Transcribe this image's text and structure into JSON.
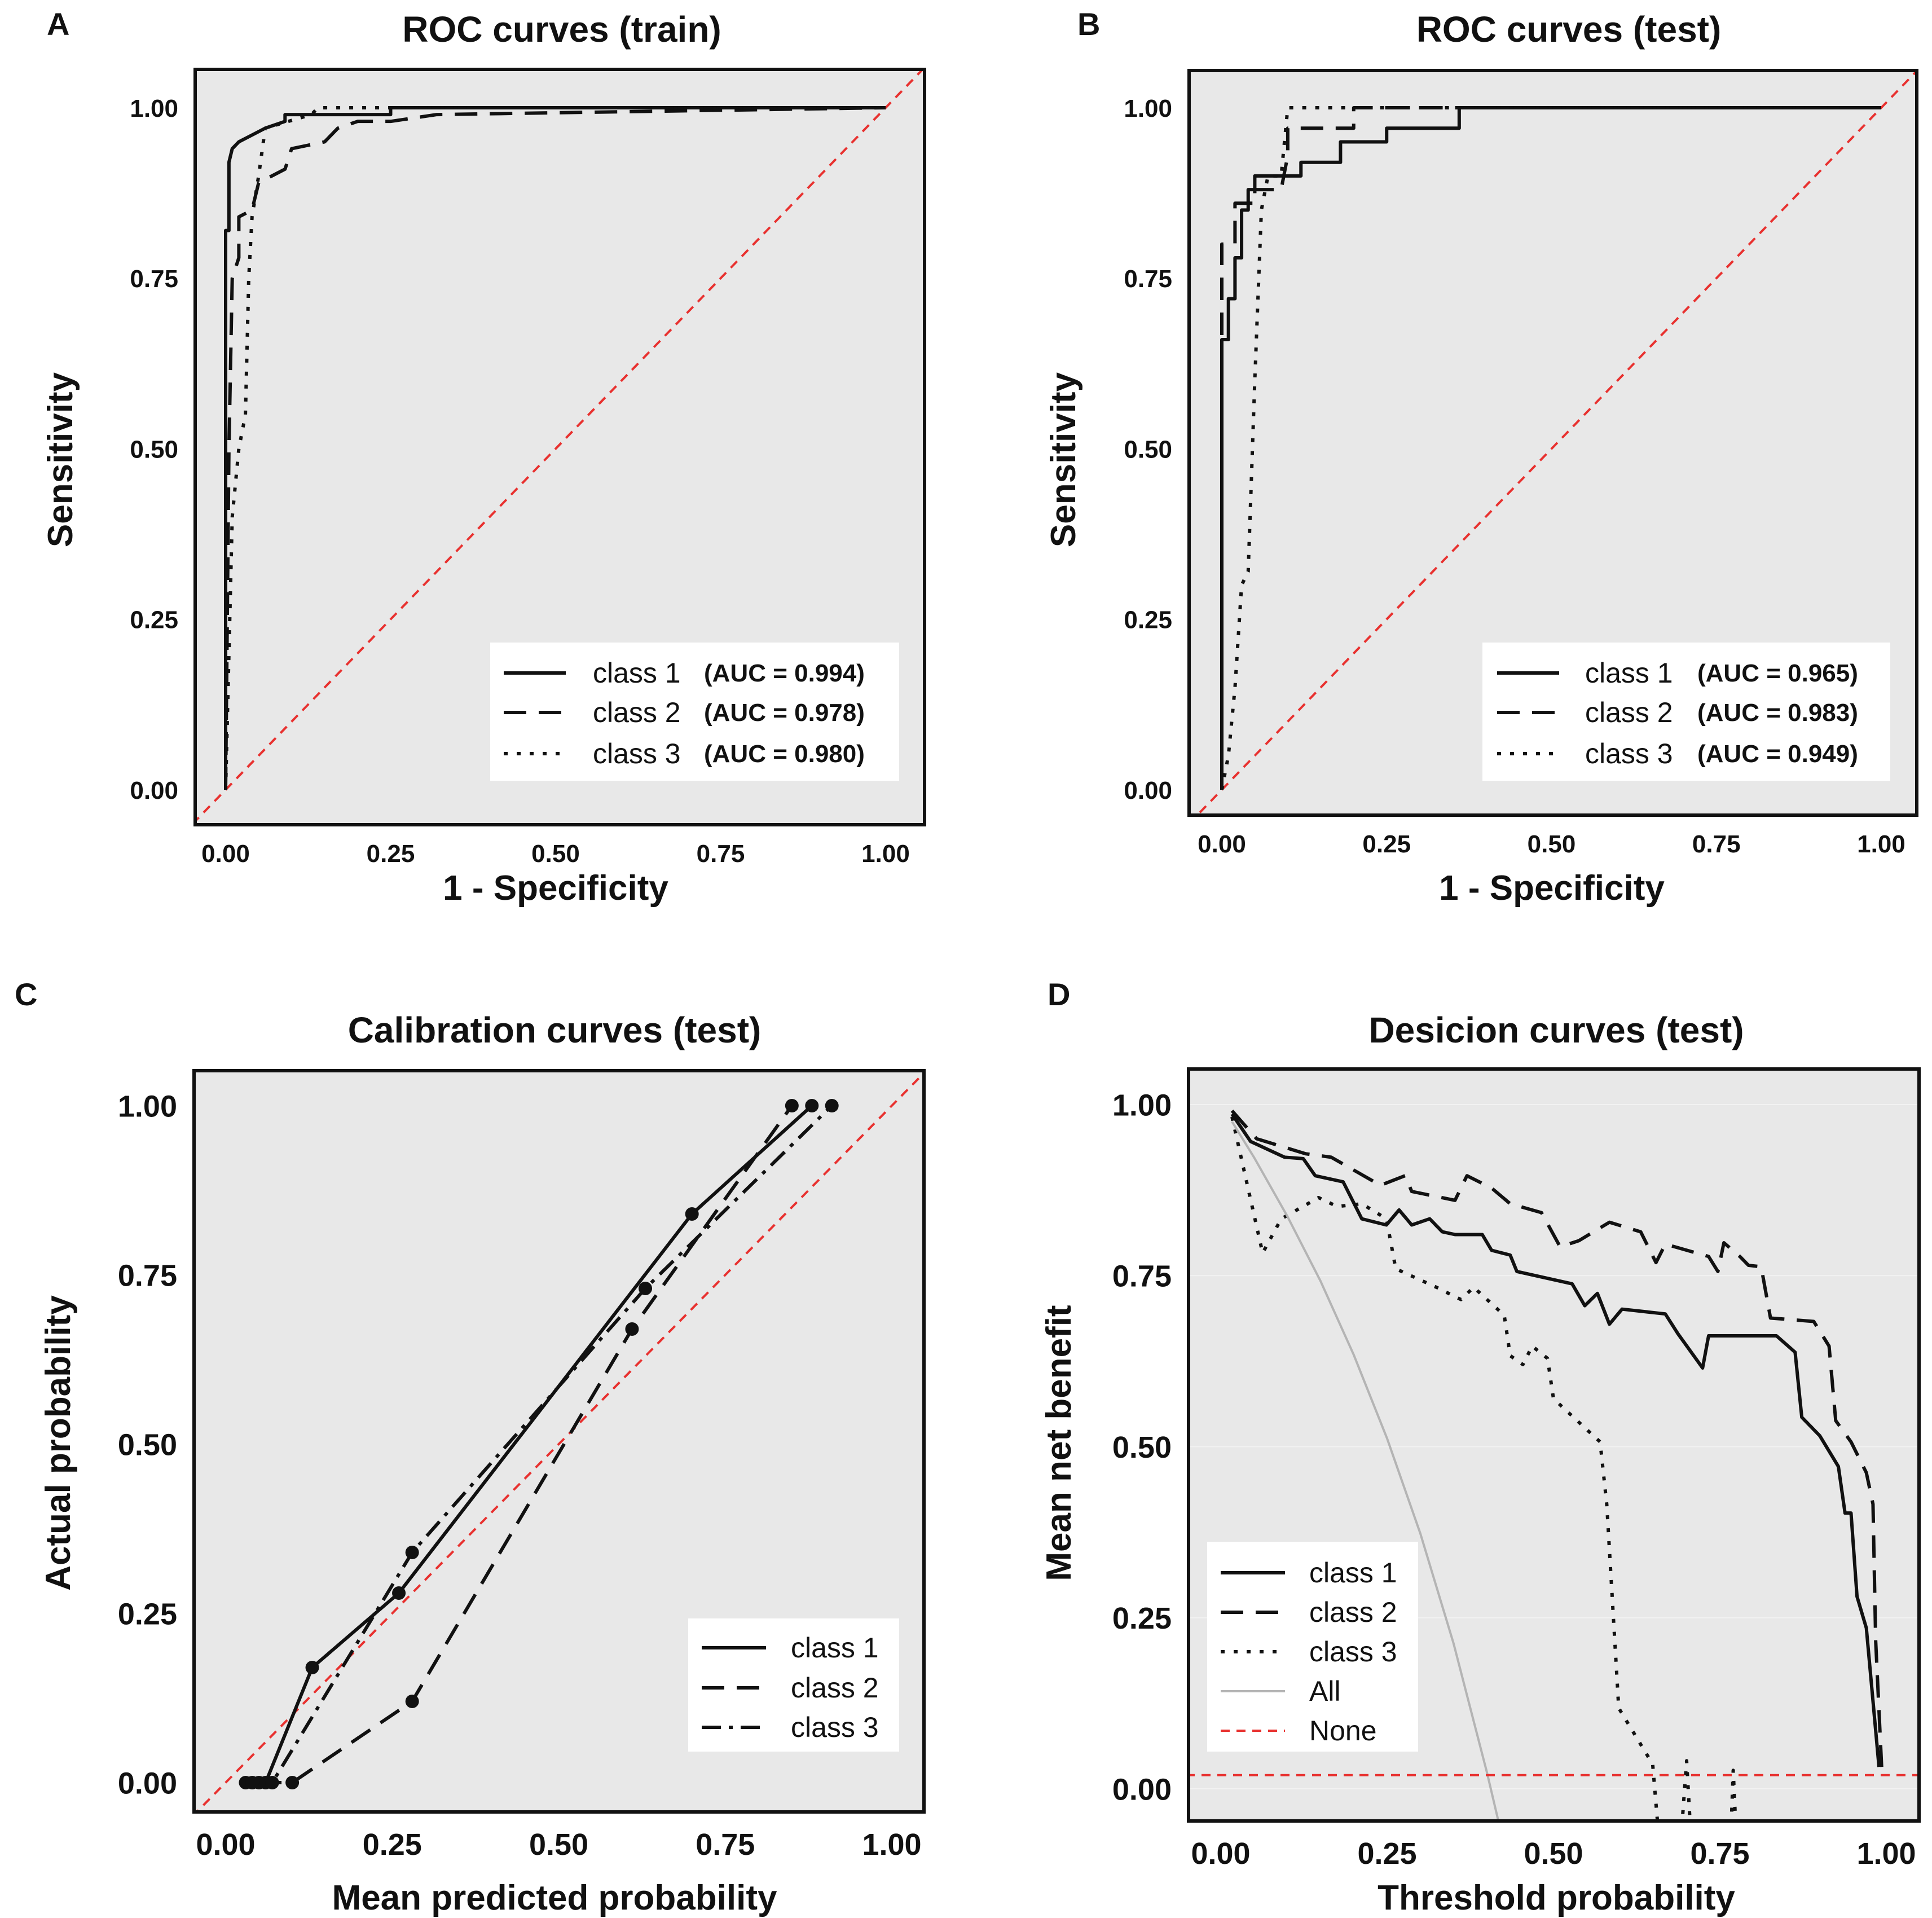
{
  "chart_data": [
    {
      "panel": "A",
      "type": "line",
      "title": "ROC curves (train)",
      "xlabel": "1 - Specificity",
      "ylabel": "Sensitivity",
      "xlim": [
        0,
        1
      ],
      "ylim": [
        0,
        1
      ],
      "xticks": [
        0,
        0.25,
        0.5,
        0.75,
        1
      ],
      "xtick_labels": [
        "0.00",
        "0.25",
        "0.50",
        "0.75",
        "1.00"
      ],
      "yticks": [
        0,
        0.25,
        0.5,
        0.75,
        1
      ],
      "ytick_labels": [
        "0.00",
        "0.25",
        "0.50",
        "0.75",
        "1.00"
      ],
      "legend_position": "bottom-right",
      "reference": {
        "style": "dashed",
        "color": "#e8312f",
        "points": [
          [
            -0.1,
            -0.1
          ],
          [
            1.1,
            1.1
          ]
        ]
      },
      "series": [
        {
          "name": "class 1",
          "auc": "(AUC = 0.994)",
          "style": "solid",
          "points": [
            [
              0,
              0
            ],
            [
              0,
              0.82
            ],
            [
              0.005,
              0.82
            ],
            [
              0.005,
              0.92
            ],
            [
              0.01,
              0.94
            ],
            [
              0.02,
              0.95
            ],
            [
              0.04,
              0.96
            ],
            [
              0.06,
              0.97
            ],
            [
              0.09,
              0.98
            ],
            [
              0.09,
              0.99
            ],
            [
              0.25,
              0.99
            ],
            [
              0.25,
              1
            ],
            [
              1,
              1
            ]
          ]
        },
        {
          "name": "class 2",
          "auc": "(AUC = 0.978)",
          "style": "dashed",
          "points": [
            [
              0,
              0
            ],
            [
              0.005,
              0.5
            ],
            [
              0.01,
              0.75
            ],
            [
              0.02,
              0.78
            ],
            [
              0.02,
              0.84
            ],
            [
              0.04,
              0.85
            ],
            [
              0.05,
              0.89
            ],
            [
              0.07,
              0.9
            ],
            [
              0.09,
              0.91
            ],
            [
              0.1,
              0.94
            ],
            [
              0.15,
              0.95
            ],
            [
              0.17,
              0.97
            ],
            [
              0.2,
              0.98
            ],
            [
              0.25,
              0.98
            ],
            [
              0.32,
              0.99
            ],
            [
              1,
              1
            ]
          ]
        },
        {
          "name": "class 3",
          "auc": "(AUC = 0.980)",
          "style": "dotted",
          "points": [
            [
              0,
              0
            ],
            [
              0.01,
              0.4
            ],
            [
              0.02,
              0.5
            ],
            [
              0.03,
              0.55
            ],
            [
              0.035,
              0.75
            ],
            [
              0.04,
              0.84
            ],
            [
              0.05,
              0.9
            ],
            [
              0.06,
              0.97
            ],
            [
              0.13,
              0.99
            ],
            [
              0.14,
              1
            ],
            [
              1,
              1
            ]
          ]
        }
      ]
    },
    {
      "panel": "B",
      "type": "line",
      "title": "ROC curves (test)",
      "xlabel": "1 - Specificity",
      "ylabel": "Sensitivity",
      "xlim": [
        0,
        1
      ],
      "ylim": [
        0,
        1
      ],
      "xticks": [
        0,
        0.25,
        0.5,
        0.75,
        1
      ],
      "xtick_labels": [
        "0.00",
        "0.25",
        "0.50",
        "0.75",
        "1.00"
      ],
      "yticks": [
        0,
        0.25,
        0.5,
        0.75,
        1
      ],
      "ytick_labels": [
        "0.00",
        "0.25",
        "0.50",
        "0.75",
        "1.00"
      ],
      "legend_position": "bottom-right",
      "reference": {
        "style": "dashed",
        "color": "#e8312f",
        "points": [
          [
            -0.1,
            -0.1
          ],
          [
            1.1,
            1.1
          ]
        ]
      },
      "series": [
        {
          "name": "class 1",
          "auc": "(AUC = 0.965)",
          "style": "solid",
          "points": [
            [
              0,
              0
            ],
            [
              0,
              0.66
            ],
            [
              0.01,
              0.66
            ],
            [
              0.01,
              0.72
            ],
            [
              0.02,
              0.72
            ],
            [
              0.02,
              0.78
            ],
            [
              0.03,
              0.78
            ],
            [
              0.03,
              0.85
            ],
            [
              0.04,
              0.85
            ],
            [
              0.04,
              0.88
            ],
            [
              0.05,
              0.88
            ],
            [
              0.05,
              0.9
            ],
            [
              0.12,
              0.9
            ],
            [
              0.12,
              0.92
            ],
            [
              0.18,
              0.92
            ],
            [
              0.18,
              0.95
            ],
            [
              0.25,
              0.95
            ],
            [
              0.25,
              0.97
            ],
            [
              0.36,
              0.97
            ],
            [
              0.36,
              1
            ],
            [
              1,
              1
            ]
          ]
        },
        {
          "name": "class 2",
          "auc": "(AUC = 0.983)",
          "style": "dashed",
          "points": [
            [
              0,
              0
            ],
            [
              0,
              0.8
            ],
            [
              0.02,
              0.8
            ],
            [
              0.02,
              0.86
            ],
            [
              0.05,
              0.86
            ],
            [
              0.05,
              0.88
            ],
            [
              0.09,
              0.88
            ],
            [
              0.1,
              0.93
            ],
            [
              0.1,
              0.97
            ],
            [
              0.2,
              0.97
            ],
            [
              0.2,
              1
            ],
            [
              1,
              1
            ]
          ]
        },
        {
          "name": "class 3",
          "auc": "(AUC = 0.949)",
          "style": "dotted",
          "points": [
            [
              0,
              0
            ],
            [
              0.01,
              0.05
            ],
            [
              0.02,
              0.15
            ],
            [
              0.03,
              0.3
            ],
            [
              0.04,
              0.32
            ],
            [
              0.05,
              0.6
            ],
            [
              0.06,
              0.85
            ],
            [
              0.07,
              0.9
            ],
            [
              0.09,
              0.9
            ],
            [
              0.1,
              1
            ],
            [
              1,
              1
            ]
          ]
        }
      ]
    },
    {
      "panel": "C",
      "type": "line",
      "title": "Calibration curves (test)",
      "xlabel": "Mean predicted probability",
      "ylabel": "Actual probability",
      "xlim": [
        0,
        1
      ],
      "ylim": [
        0,
        1
      ],
      "xticks": [
        0,
        0.25,
        0.5,
        0.75,
        1
      ],
      "xtick_labels": [
        "0.00",
        "0.25",
        "0.50",
        "0.75",
        "1.00"
      ],
      "yticks": [
        0,
        0.25,
        0.5,
        0.75,
        1
      ],
      "ytick_labels": [
        "0.00",
        "0.25",
        "0.50",
        "0.75",
        "1.00"
      ],
      "legend_position": "bottom-right",
      "reference": {
        "style": "dashed",
        "color": "#e8312f",
        "points": [
          [
            -0.1,
            -0.1
          ],
          [
            1.1,
            1.1
          ]
        ]
      },
      "series": [
        {
          "name": "class 1",
          "style": "solid",
          "markers": true,
          "points": [
            [
              0.03,
              0
            ],
            [
              0.06,
              0
            ],
            [
              0.13,
              0.17
            ],
            [
              0.26,
              0.28
            ],
            [
              0.7,
              0.84
            ],
            [
              0.88,
              1.0
            ]
          ]
        },
        {
          "name": "class 2",
          "style": "dashed",
          "markers": true,
          "points": [
            [
              0.05,
              0
            ],
            [
              0.1,
              0
            ],
            [
              0.28,
              0.12
            ],
            [
              0.61,
              0.67
            ],
            [
              0.85,
              1.0
            ]
          ]
        },
        {
          "name": "class 3",
          "style": "dashdot",
          "markers": true,
          "points": [
            [
              0.04,
              0
            ],
            [
              0.07,
              0
            ],
            [
              0.28,
              0.34
            ],
            [
              0.63,
              0.73
            ],
            [
              0.91,
              1.0
            ]
          ]
        }
      ]
    },
    {
      "panel": "D",
      "type": "line",
      "title": "Desicion curves (test)",
      "xlabel": "Threshold probability",
      "ylabel": "Mean net benefit",
      "xlim": [
        0,
        1
      ],
      "ylim": [
        0,
        1
      ],
      "xticks": [
        0,
        0.25,
        0.5,
        0.75,
        1
      ],
      "xtick_labels": [
        "0.00",
        "0.25",
        "0.50",
        "0.75",
        "1.00"
      ],
      "yticks": [
        0,
        0.25,
        0.5,
        0.75,
        1
      ],
      "ytick_labels": [
        "0.00",
        "0.25",
        "0.50",
        "0.75",
        "1.00"
      ],
      "legend_position": "bottom-left",
      "series": [
        {
          "name": "class 1",
          "style": "solid",
          "points": [
            [
              0.017,
              0.986
            ],
            [
              0.045,
              0.946
            ],
            [
              0.096,
              0.923
            ],
            [
              0.124,
              0.921
            ],
            [
              0.142,
              0.896
            ],
            [
              0.184,
              0.887
            ],
            [
              0.212,
              0.833
            ],
            [
              0.249,
              0.824
            ],
            [
              0.268,
              0.846
            ],
            [
              0.287,
              0.824
            ],
            [
              0.314,
              0.833
            ],
            [
              0.333,
              0.814
            ],
            [
              0.352,
              0.81
            ],
            [
              0.393,
              0.81
            ],
            [
              0.407,
              0.787
            ],
            [
              0.435,
              0.78
            ],
            [
              0.445,
              0.756
            ],
            [
              0.528,
              0.738
            ],
            [
              0.547,
              0.706
            ],
            [
              0.566,
              0.724
            ],
            [
              0.584,
              0.679
            ],
            [
              0.603,
              0.701
            ],
            [
              0.668,
              0.694
            ],
            [
              0.687,
              0.665
            ],
            [
              0.724,
              0.615
            ],
            [
              0.733,
              0.662
            ],
            [
              0.835,
              0.662
            ],
            [
              0.863,
              0.638
            ],
            [
              0.873,
              0.543
            ],
            [
              0.9,
              0.516
            ],
            [
              0.928,
              0.471
            ],
            [
              0.938,
              0.403
            ],
            [
              0.947,
              0.403
            ],
            [
              0.956,
              0.281
            ],
            [
              0.97,
              0.235
            ],
            [
              0.989,
              0.032
            ]
          ]
        },
        {
          "name": "class 2",
          "style": "dashed",
          "points": [
            [
              0.017,
              0.991
            ],
            [
              0.054,
              0.95
            ],
            [
              0.128,
              0.928
            ],
            [
              0.166,
              0.923
            ],
            [
              0.24,
              0.882
            ],
            [
              0.277,
              0.896
            ],
            [
              0.287,
              0.873
            ],
            [
              0.352,
              0.86
            ],
            [
              0.37,
              0.896
            ],
            [
              0.407,
              0.878
            ],
            [
              0.435,
              0.855
            ],
            [
              0.482,
              0.842
            ],
            [
              0.51,
              0.792
            ],
            [
              0.538,
              0.801
            ],
            [
              0.584,
              0.828
            ],
            [
              0.631,
              0.814
            ],
            [
              0.654,
              0.769
            ],
            [
              0.668,
              0.796
            ],
            [
              0.733,
              0.778
            ],
            [
              0.747,
              0.756
            ],
            [
              0.756,
              0.798
            ],
            [
              0.78,
              0.778
            ],
            [
              0.793,
              0.765
            ],
            [
              0.812,
              0.763
            ],
            [
              0.826,
              0.688
            ],
            [
              0.891,
              0.683
            ],
            [
              0.914,
              0.647
            ],
            [
              0.924,
              0.538
            ],
            [
              0.947,
              0.507
            ],
            [
              0.97,
              0.462
            ],
            [
              0.98,
              0.416
            ],
            [
              0.984,
              0.217
            ],
            [
              0.993,
              0.032
            ]
          ]
        },
        {
          "name": "class 3",
          "style": "dotted",
          "points": [
            [
              0.017,
              0.982
            ],
            [
              0.063,
              0.783
            ],
            [
              0.091,
              0.833
            ],
            [
              0.147,
              0.864
            ],
            [
              0.175,
              0.851
            ],
            [
              0.212,
              0.855
            ],
            [
              0.249,
              0.833
            ],
            [
              0.263,
              0.76
            ],
            [
              0.324,
              0.733
            ],
            [
              0.361,
              0.715
            ],
            [
              0.38,
              0.733
            ],
            [
              0.426,
              0.692
            ],
            [
              0.435,
              0.633
            ],
            [
              0.454,
              0.62
            ],
            [
              0.468,
              0.647
            ],
            [
              0.491,
              0.629
            ],
            [
              0.5,
              0.57
            ],
            [
              0.57,
              0.507
            ],
            [
              0.58,
              0.416
            ],
            [
              0.598,
              0.118
            ],
            [
              0.649,
              0.036
            ],
            [
              0.659,
              -0.08
            ],
            [
              0.691,
              -0.08
            ],
            [
              0.7,
              0.041
            ],
            [
              0.707,
              -0.08
            ],
            [
              0.766,
              -0.08
            ],
            [
              0.77,
              0.027
            ],
            [
              0.775,
              -0.08
            ]
          ]
        },
        {
          "name": "All",
          "style": "solid",
          "color": "#b4b4b4",
          "points": [
            [
              0.017,
              0.975
            ],
            [
              0.05,
              0.923
            ],
            [
              0.1,
              0.837
            ],
            [
              0.15,
              0.742
            ],
            [
              0.2,
              0.634
            ],
            [
              0.25,
              0.512
            ],
            [
              0.3,
              0.373
            ],
            [
              0.35,
              0.212
            ],
            [
              0.4,
              0.024
            ],
            [
              0.43,
              -0.1
            ]
          ]
        },
        {
          "name": "None",
          "style": "dashed",
          "color": "#e8312f",
          "points": [
            [
              -0.1,
              0.02
            ],
            [
              1.1,
              0.02
            ]
          ]
        }
      ]
    }
  ]
}
